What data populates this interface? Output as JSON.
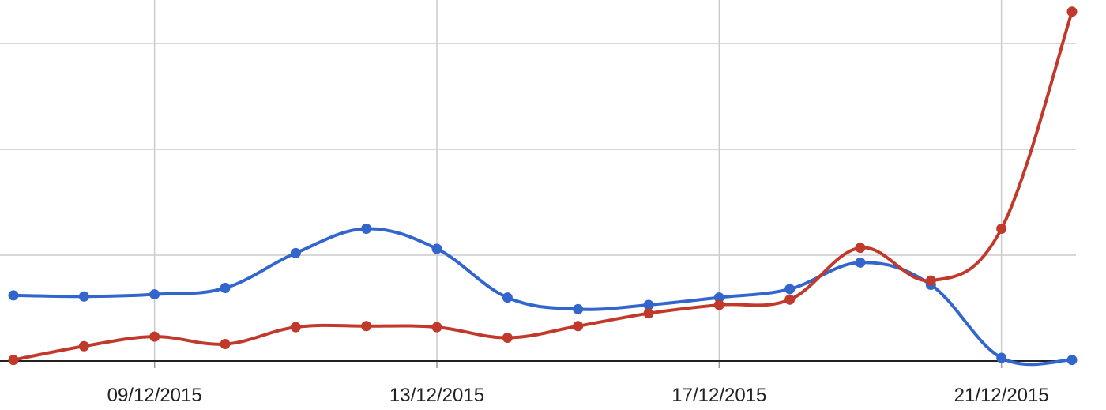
{
  "chart_data": {
    "type": "line",
    "title": "",
    "xlabel": "",
    "ylabel": "",
    "x": [
      "07/12/2015",
      "08/12/2015",
      "09/12/2015",
      "10/12/2015",
      "11/12/2015",
      "12/12/2015",
      "13/12/2015",
      "14/12/2015",
      "15/12/2015",
      "16/12/2015",
      "17/12/2015",
      "18/12/2015",
      "19/12/2015",
      "20/12/2015",
      "21/12/2015",
      "22/12/2015"
    ],
    "x_tick_labels": [
      "09/12/2015",
      "13/12/2015",
      "17/12/2015",
      "21/12/2015"
    ],
    "ylim": [
      0,
      3.3
    ],
    "y_gridlines": [
      1,
      2,
      3
    ],
    "grid": true,
    "legend": "none",
    "series": [
      {
        "color": "#3366cc",
        "values": [
          0.62,
          0.61,
          0.63,
          0.69,
          1.02,
          1.25,
          1.06,
          0.6,
          0.49,
          0.53,
          0.6,
          0.68,
          0.93,
          0.72,
          0.03,
          0.01
        ]
      },
      {
        "color": "#c0392b",
        "values": [
          0.01,
          0.14,
          0.23,
          0.16,
          0.32,
          0.33,
          0.32,
          0.22,
          0.33,
          0.45,
          0.53,
          0.58,
          1.07,
          0.76,
          1.25,
          3.3
        ]
      }
    ]
  }
}
